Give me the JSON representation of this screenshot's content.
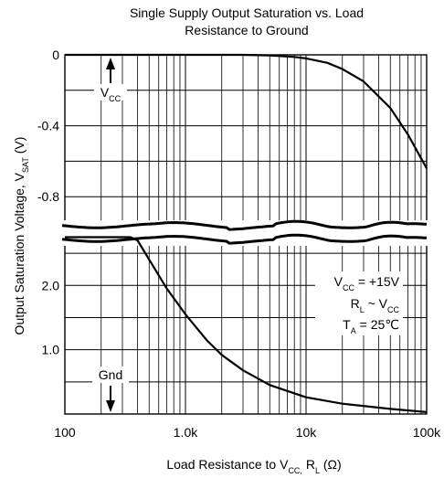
{
  "chart_data": {
    "type": "line",
    "title_lines": [
      "Single Supply Output Saturation vs. Load",
      "Resistance to Ground"
    ],
    "xlabel": {
      "text": "Load Resistance to V",
      "sub1": "CC,",
      "mid": " R",
      "sub2": "L",
      "tail": " (Ω)"
    },
    "ylabel": {
      "text": "Output Saturation Voltage, V",
      "sub": "SAT",
      "tail": " (V)"
    },
    "x_scale": "log",
    "xlim": [
      100,
      100000
    ],
    "x_ticks": [
      {
        "value": 100,
        "label": "100"
      },
      {
        "value": 1000,
        "label": "1.0k"
      },
      {
        "value": 10000,
        "label": "10k"
      },
      {
        "value": 100000,
        "label": "100k"
      }
    ],
    "upper_panel": {
      "reference": "V_CC",
      "ylim": [
        -1.0,
        0
      ],
      "y_ticks": [
        {
          "value": 0,
          "label": "0"
        },
        {
          "value": -0.4,
          "label": "-0.4"
        },
        {
          "value": -0.8,
          "label": "-0.8"
        }
      ],
      "series": [
        {
          "x": [
            100,
            1000,
            3000,
            5000,
            8000,
            10000,
            15000,
            20000,
            30000,
            50000,
            70000,
            100000
          ],
          "y": [
            0,
            0,
            0,
            -0.003,
            -0.012,
            -0.02,
            -0.045,
            -0.08,
            -0.15,
            -0.3,
            -0.45,
            -0.64
          ]
        }
      ]
    },
    "lower_panel": {
      "reference": "Gnd",
      "ylim": [
        0,
        2.8
      ],
      "y_ticks": [
        {
          "value": 2.0,
          "label": "2.0"
        },
        {
          "value": 1.0,
          "label": "1.0"
        }
      ],
      "series": [
        {
          "x": [
            100,
            250,
            350,
            400,
            500,
            700,
            1000,
            1500,
            2000,
            3000,
            5000,
            10000,
            20000,
            50000,
            100000
          ],
          "y": [
            2.75,
            2.75,
            2.75,
            2.7,
            2.4,
            1.95,
            1.55,
            1.15,
            0.92,
            0.68,
            0.45,
            0.26,
            0.16,
            0.08,
            0.03
          ]
        }
      ]
    },
    "annotations": {
      "vcc_label": "V",
      "vcc_sub": "CC",
      "gnd_label": "Gnd",
      "conditions": [
        {
          "main": "V",
          "sub": "CC",
          "tail": " = +15V"
        },
        {
          "main": "R",
          "sub": "L",
          "tail": " ~ V",
          "sub2": "CC"
        },
        {
          "main": "T",
          "sub": "A",
          "tail": " = 25℃"
        }
      ]
    }
  }
}
